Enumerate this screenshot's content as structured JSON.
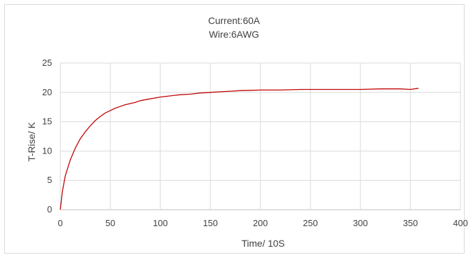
{
  "chart_data": {
    "type": "line",
    "title": "Current:60A",
    "subtitle": "Wire:6AWG",
    "xlabel": "Time/ 10S",
    "ylabel": "T-Rise/ K",
    "xlim": [
      0,
      400
    ],
    "ylim": [
      0,
      25
    ],
    "xticks": [
      "0",
      "50",
      "100",
      "150",
      "200",
      "250",
      "300",
      "350",
      "400"
    ],
    "yticks": [
      "0",
      "5",
      "10",
      "15",
      "20",
      "25"
    ],
    "grid": true,
    "legend": "none",
    "series": [
      {
        "color": "#c00000",
        "x": [
          0,
          2,
          5,
          10,
          15,
          20,
          25,
          30,
          35,
          40,
          45,
          50,
          55,
          60,
          65,
          70,
          75,
          80,
          90,
          100,
          110,
          120,
          130,
          140,
          150,
          160,
          170,
          180,
          190,
          200,
          220,
          240,
          260,
          280,
          300,
          320,
          340,
          350,
          358
        ],
        "y": [
          0,
          3.0,
          5.8,
          8.5,
          10.5,
          12.1,
          13.3,
          14.3,
          15.2,
          15.9,
          16.5,
          16.9,
          17.3,
          17.6,
          17.9,
          18.1,
          18.3,
          18.6,
          18.9,
          19.2,
          19.4,
          19.6,
          19.7,
          19.9,
          20.0,
          20.1,
          20.2,
          20.3,
          20.35,
          20.4,
          20.4,
          20.5,
          20.5,
          20.5,
          20.5,
          20.6,
          20.6,
          20.5,
          20.7
        ]
      }
    ]
  }
}
